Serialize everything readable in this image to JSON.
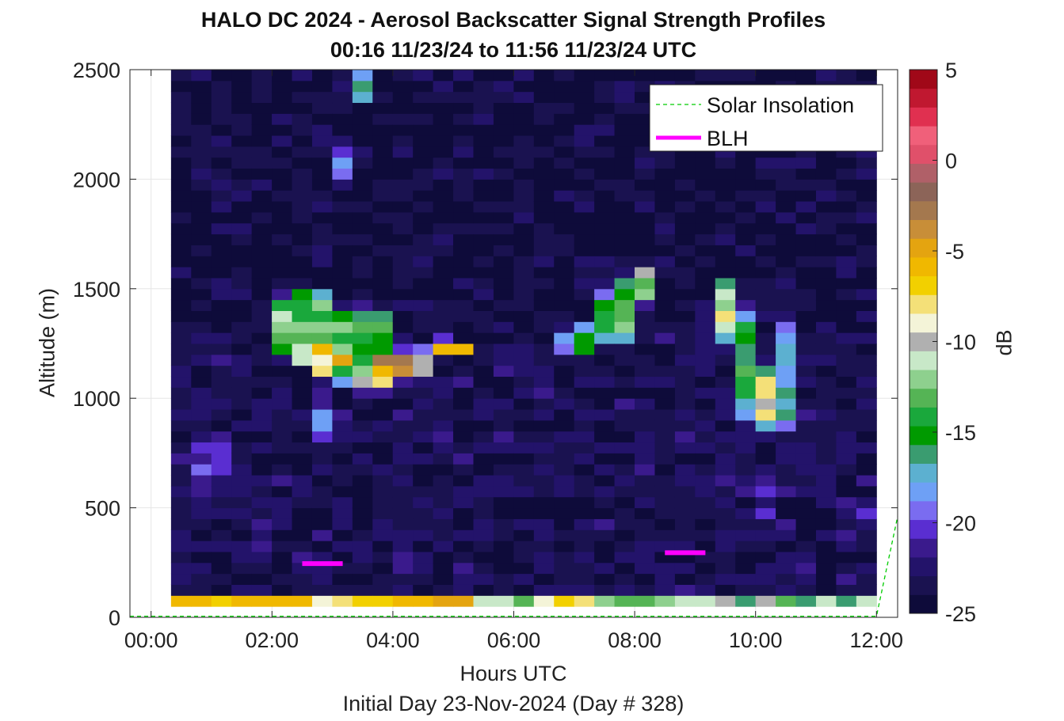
{
  "chart_data": {
    "type": "heatmap",
    "title": "HALO DC 2024 - Aerosol Backscatter Signal Strength Profiles",
    "subtitle": "00:16 11/23/24 to 11:56 11/23/24  UTC",
    "xlabel": "Hours UTC",
    "ylabel": "Altitude (m)",
    "footnote": "Initial Day 23-Nov-2024 (Day # 328)",
    "xlim": [
      -0.35,
      12.35
    ],
    "ylim": [
      0,
      2500
    ],
    "xticks": [
      0,
      2,
      4,
      6,
      8,
      10,
      12
    ],
    "xticklabels": [
      "00:00",
      "02:00",
      "04:00",
      "06:00",
      "08:00",
      "10:00",
      "12:00"
    ],
    "yticks": [
      0,
      500,
      1000,
      1500,
      2000,
      2500
    ],
    "yticklabels": [
      "0",
      "500",
      "1000",
      "1500",
      "2000",
      "2500"
    ],
    "grid": true,
    "colorbar": {
      "label": "dB",
      "range": [
        -25,
        5
      ],
      "ticks": [
        5,
        0,
        -5,
        -10,
        -15,
        -20,
        -25
      ],
      "ticklabels": [
        "5",
        "0",
        "-5",
        "-10",
        "-15",
        "-20",
        "-25"
      ]
    },
    "legend": {
      "placement": "top-right",
      "entries": [
        {
          "label": "Solar Insolation",
          "color": "#00cc00",
          "style": "dashed"
        },
        {
          "label": "BLH",
          "color": "#ff00ff",
          "style": "solid"
        }
      ]
    },
    "heatmap": {
      "x_start": 0.33,
      "x_end": 12.0,
      "x_step": 0.3333,
      "y_start": 100,
      "y_end": 2500,
      "y_step": 50,
      "cols": 35,
      "rows": 48,
      "background_db": -24,
      "surface_row_db": [
        -6,
        -6,
        -7,
        -6,
        -6,
        -6,
        -6,
        -9,
        -8,
        -7,
        -7,
        -6,
        -6,
        -5,
        -5,
        -11,
        -11,
        -13,
        -9,
        -7,
        -8,
        -12,
        -13,
        -13,
        -12,
        -11,
        -11,
        -10,
        -16,
        -10,
        -13,
        -16,
        -11,
        -16,
        -11
      ],
      "features": [
        {
          "x": 2.55,
          "y": 1330,
          "dx": 0.7,
          "dy": 200,
          "db": -13
        },
        {
          "x": 2.9,
          "y": 1180,
          "dx": 0.5,
          "dy": 90,
          "db": -7
        },
        {
          "x": 3.5,
          "y": 1270,
          "dx": 0.7,
          "dy": 180,
          "db": -14
        },
        {
          "x": 4.1,
          "y": 1150,
          "dx": 0.6,
          "dy": 80,
          "db": -4
        },
        {
          "x": 4.9,
          "y": 1230,
          "dx": 0.45,
          "dy": 50,
          "db": -7
        },
        {
          "x": 3.6,
          "y": 1080,
          "dx": 0.5,
          "dy": 60,
          "db": -9
        },
        {
          "x": 3.35,
          "y": 2420,
          "dx": 0.2,
          "dy": 120,
          "db": -12
        },
        {
          "x": 3.05,
          "y": 2080,
          "dx": 0.18,
          "dy": 160,
          "db": -18
        },
        {
          "x": 2.75,
          "y": 900,
          "dx": 0.18,
          "dy": 120,
          "db": -19
        },
        {
          "x": 7.7,
          "y": 1370,
          "dx": 0.35,
          "dy": 160,
          "db": -14
        },
        {
          "x": 8.1,
          "y": 1520,
          "dx": 0.35,
          "dy": 100,
          "db": -12
        },
        {
          "x": 9.5,
          "y": 1400,
          "dx": 0.35,
          "dy": 150,
          "db": -10
        },
        {
          "x": 9.9,
          "y": 1150,
          "dx": 0.25,
          "dy": 300,
          "db": -15
        },
        {
          "x": 10.2,
          "y": 1000,
          "dx": 0.18,
          "dy": 150,
          "db": -9
        },
        {
          "x": 10.55,
          "y": 1100,
          "dx": 0.2,
          "dy": 300,
          "db": -17
        },
        {
          "x": 7.05,
          "y": 1270,
          "dx": 0.3,
          "dy": 100,
          "db": -16
        },
        {
          "x": 10.3,
          "y": 500,
          "dx": 0.2,
          "dy": 300,
          "db": -21
        },
        {
          "x": 1.0,
          "y": 700,
          "dx": 0.6,
          "dy": 200,
          "db": -21.5
        },
        {
          "x": 11.8,
          "y": 460,
          "dx": 0.25,
          "dy": 40,
          "db": -21
        }
      ]
    },
    "series": [
      {
        "name": "Solar Insolation",
        "x": [
          -0.35,
          12.0,
          12.35
        ],
        "y": [
          5,
          5,
          460
        ]
      },
      {
        "name": "BLH",
        "segments": [
          {
            "x": [
              2.5,
              3.17
            ],
            "y": [
              245,
              245
            ]
          },
          {
            "x": [
              8.5,
              9.17
            ],
            "y": [
              295,
              295
            ]
          }
        ]
      }
    ]
  },
  "colors": {
    "colormap": [
      "#0e0b3a",
      "#1a1250",
      "#23136a",
      "#3a1a8c",
      "#5a2ed1",
      "#7a6cf0",
      "#6ea0f5",
      "#5cb0d0",
      "#3a9c70",
      "#009a00",
      "#1aa83c",
      "#55b455",
      "#8ed08e",
      "#c8e8c8",
      "#b0b0b0",
      "#f4f4d8",
      "#f4e078",
      "#f2d000",
      "#f0b800",
      "#e4a410",
      "#c88e38",
      "#a4784e",
      "#8c6458",
      "#b06068",
      "#e0506a",
      "#f0607a",
      "#e03050",
      "#c01830",
      "#a00818"
    ],
    "axis": "#222222",
    "grid": "#e6e6e6",
    "blh": "#ff00ff",
    "insolation": "#00cc00"
  }
}
